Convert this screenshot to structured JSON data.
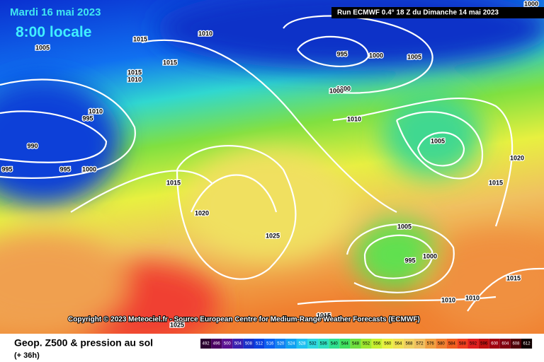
{
  "header": {
    "date": "Mardi 16 mai 2023",
    "time": "8:00 locale",
    "run": "Run ECMWF 0.4° 18 Z du Dimanche 14 mai 2023"
  },
  "copyright": "Copyright © 2023 Meteociel.fr - Source European Centre for Medium-Range Weather Forecasts (ECMWF)",
  "footer": {
    "title": "Geop. Z500 & pression au sol",
    "lead": "(+ 36h)"
  },
  "isobar_labels": [
    "1005",
    "1010",
    "1015",
    "1015",
    "1015",
    "1010",
    "1010",
    "995",
    "990",
    "995",
    "995",
    "1000",
    "995",
    "1000",
    "1005",
    "1000",
    "1000",
    "1010",
    "1005",
    "1020",
    "1015",
    "1015",
    "1020",
    "1025",
    "1005",
    "1000",
    "995",
    "1010",
    "1010",
    "1015",
    "1015",
    "1025",
    "1000"
  ],
  "scale": {
    "labels": [
      "492",
      "496",
      "500",
      "504",
      "508",
      "512",
      "516",
      "520",
      "524",
      "528",
      "532",
      "536",
      "540",
      "544",
      "548",
      "552",
      "556",
      "560",
      "564",
      "568",
      "572",
      "576",
      "580",
      "584",
      "588",
      "592",
      "596",
      "600",
      "604",
      "608",
      "612"
    ],
    "colors": [
      "#2b0030",
      "#4a0060",
      "#5a1090",
      "#3a20b0",
      "#1a30c8",
      "#0a40e0",
      "#0a60f0",
      "#1080f0",
      "#10a0f0",
      "#20c0f0",
      "#30d8e0",
      "#30e0c0",
      "#30e090",
      "#40e060",
      "#70e040",
      "#a0e830",
      "#c8f030",
      "#e8f040",
      "#f0e050",
      "#f0d060",
      "#f0c060",
      "#f0a040",
      "#f08030",
      "#f06020",
      "#f04020",
      "#e02020",
      "#c01010",
      "#a00010",
      "#800010",
      "#500008",
      "#100000"
    ]
  }
}
